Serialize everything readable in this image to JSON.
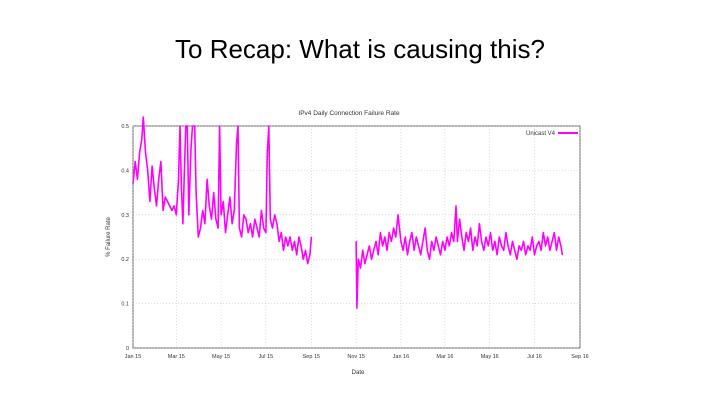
{
  "slide": {
    "title": "To Recap: What is causing this?"
  },
  "chart_data": {
    "type": "line",
    "title": "IPv4 Daily Connection Failure Rate",
    "xlabel": "Date",
    "ylabel": "% Failure Rate",
    "ylim": [
      0,
      0.5
    ],
    "yticks": [
      "0",
      "0.1",
      "0.2",
      "0.3",
      "0.4",
      "0.5"
    ],
    "xlim": [
      "2015-01-01",
      "2016-09-01"
    ],
    "xticks": [
      {
        "date": "2015-01-01",
        "label": "Jan 15"
      },
      {
        "date": "2015-03-01",
        "label": "Mar 15"
      },
      {
        "date": "2015-05-01",
        "label": "May 15"
      },
      {
        "date": "2015-07-01",
        "label": "Jul 15"
      },
      {
        "date": "2015-09-01",
        "label": "Sep 15"
      },
      {
        "date": "2015-11-01",
        "label": "Nov 15"
      },
      {
        "date": "2016-01-01",
        "label": "Jan 16"
      },
      {
        "date": "2016-03-01",
        "label": "Mar 16"
      },
      {
        "date": "2016-05-01",
        "label": "May 16"
      },
      {
        "date": "2016-07-01",
        "label": "Jul 16"
      },
      {
        "date": "2016-09-01",
        "label": "Sep 16"
      }
    ],
    "grid": true,
    "legend_position": "top-right",
    "series": [
      {
        "name": "Unicast V4",
        "color": "#ff00ff",
        "segments": [
          [
            [
              "2015-01-01",
              0.37
            ],
            [
              "2015-01-04",
              0.42
            ],
            [
              "2015-01-07",
              0.38
            ],
            [
              "2015-01-10",
              0.44
            ],
            [
              "2015-01-13",
              0.47
            ],
            [
              "2015-01-15",
              0.52
            ],
            [
              "2015-01-18",
              0.44
            ],
            [
              "2015-01-21",
              0.4
            ],
            [
              "2015-01-24",
              0.33
            ],
            [
              "2015-01-27",
              0.41
            ],
            [
              "2015-01-30",
              0.36
            ],
            [
              "2015-02-02",
              0.32
            ],
            [
              "2015-02-05",
              0.38
            ],
            [
              "2015-02-08",
              0.42
            ],
            [
              "2015-02-11",
              0.31
            ],
            [
              "2015-02-14",
              0.34
            ],
            [
              "2015-02-17",
              0.33
            ],
            [
              "2015-02-20",
              0.32
            ],
            [
              "2015-02-23",
              0.31
            ],
            [
              "2015-02-26",
              0.32
            ],
            [
              "2015-03-01",
              0.3
            ],
            [
              "2015-03-04",
              0.38
            ],
            [
              "2015-03-06",
              0.5
            ],
            [
              "2015-03-08",
              0.36
            ],
            [
              "2015-03-10",
              0.28
            ],
            [
              "2015-03-12",
              0.4
            ],
            [
              "2015-03-14",
              0.5
            ],
            [
              "2015-03-16",
              0.5
            ],
            [
              "2015-03-18",
              0.3
            ],
            [
              "2015-03-21",
              0.45
            ],
            [
              "2015-03-23",
              0.5
            ],
            [
              "2015-03-26",
              0.5
            ],
            [
              "2015-03-28",
              0.35
            ],
            [
              "2015-03-31",
              0.25
            ],
            [
              "2015-04-03",
              0.27
            ],
            [
              "2015-04-06",
              0.31
            ],
            [
              "2015-04-09",
              0.28
            ],
            [
              "2015-04-12",
              0.38
            ],
            [
              "2015-04-15",
              0.32
            ],
            [
              "2015-04-18",
              0.29
            ],
            [
              "2015-04-21",
              0.35
            ],
            [
              "2015-04-24",
              0.29
            ],
            [
              "2015-04-27",
              0.27
            ],
            [
              "2015-04-29",
              0.5
            ],
            [
              "2015-05-01",
              0.3
            ],
            [
              "2015-05-04",
              0.33
            ],
            [
              "2015-05-07",
              0.26
            ],
            [
              "2015-05-10",
              0.3
            ],
            [
              "2015-05-13",
              0.34
            ],
            [
              "2015-05-16",
              0.28
            ],
            [
              "2015-05-19",
              0.31
            ],
            [
              "2015-05-22",
              0.46
            ],
            [
              "2015-05-24",
              0.5
            ],
            [
              "2015-05-26",
              0.27
            ],
            [
              "2015-05-29",
              0.25
            ],
            [
              "2015-06-01",
              0.3
            ],
            [
              "2015-06-04",
              0.29
            ],
            [
              "2015-06-07",
              0.26
            ],
            [
              "2015-06-10",
              0.28
            ],
            [
              "2015-06-13",
              0.25
            ],
            [
              "2015-06-16",
              0.29
            ],
            [
              "2015-06-19",
              0.27
            ],
            [
              "2015-06-22",
              0.25
            ],
            [
              "2015-06-25",
              0.31
            ],
            [
              "2015-06-28",
              0.27
            ],
            [
              "2015-07-01",
              0.26
            ],
            [
              "2015-07-03",
              0.44
            ],
            [
              "2015-07-05",
              0.5
            ],
            [
              "2015-07-07",
              0.29
            ],
            [
              "2015-07-10",
              0.27
            ],
            [
              "2015-07-13",
              0.3
            ],
            [
              "2015-07-16",
              0.28
            ],
            [
              "2015-07-19",
              0.24
            ],
            [
              "2015-07-22",
              0.26
            ],
            [
              "2015-07-25",
              0.22
            ],
            [
              "2015-07-28",
              0.25
            ],
            [
              "2015-07-31",
              0.23
            ],
            [
              "2015-08-03",
              0.25
            ],
            [
              "2015-08-06",
              0.22
            ],
            [
              "2015-08-09",
              0.24
            ],
            [
              "2015-08-12",
              0.21
            ],
            [
              "2015-08-15",
              0.25
            ],
            [
              "2015-08-18",
              0.23
            ],
            [
              "2015-08-21",
              0.2
            ],
            [
              "2015-08-24",
              0.22
            ],
            [
              "2015-08-27",
              0.19
            ],
            [
              "2015-08-30",
              0.21
            ],
            [
              "2015-09-01",
              0.25
            ]
          ],
          [
            [
              "2015-11-01",
              0.24
            ],
            [
              "2015-11-02",
              0.09
            ],
            [
              "2015-11-04",
              0.2
            ],
            [
              "2015-11-07",
              0.18
            ],
            [
              "2015-11-10",
              0.22
            ],
            [
              "2015-11-13",
              0.19
            ],
            [
              "2015-11-16",
              0.21
            ],
            [
              "2015-11-19",
              0.23
            ],
            [
              "2015-11-22",
              0.2
            ],
            [
              "2015-11-25",
              0.22
            ],
            [
              "2015-11-28",
              0.24
            ],
            [
              "2015-12-01",
              0.21
            ],
            [
              "2015-12-04",
              0.26
            ],
            [
              "2015-12-07",
              0.23
            ],
            [
              "2015-12-10",
              0.25
            ],
            [
              "2015-12-13",
              0.22
            ],
            [
              "2015-12-16",
              0.26
            ],
            [
              "2015-12-19",
              0.24
            ],
            [
              "2015-12-22",
              0.27
            ],
            [
              "2015-12-25",
              0.25
            ],
            [
              "2015-12-28",
              0.3
            ],
            [
              "2016-01-01",
              0.24
            ],
            [
              "2016-01-04",
              0.22
            ],
            [
              "2016-01-07",
              0.25
            ],
            [
              "2016-01-10",
              0.21
            ],
            [
              "2016-01-13",
              0.24
            ],
            [
              "2016-01-16",
              0.26
            ],
            [
              "2016-01-19",
              0.22
            ],
            [
              "2016-01-22",
              0.25
            ],
            [
              "2016-01-25",
              0.23
            ],
            [
              "2016-01-28",
              0.21
            ],
            [
              "2016-01-31",
              0.24
            ],
            [
              "2016-02-03",
              0.27
            ],
            [
              "2016-02-06",
              0.22
            ],
            [
              "2016-02-09",
              0.2
            ],
            [
              "2016-02-12",
              0.24
            ],
            [
              "2016-02-15",
              0.22
            ],
            [
              "2016-02-18",
              0.25
            ],
            [
              "2016-02-21",
              0.23
            ],
            [
              "2016-02-24",
              0.21
            ],
            [
              "2016-02-27",
              0.24
            ],
            [
              "2016-03-01",
              0.22
            ],
            [
              "2016-03-04",
              0.25
            ],
            [
              "2016-03-07",
              0.23
            ],
            [
              "2016-03-10",
              0.26
            ],
            [
              "2016-03-13",
              0.24
            ],
            [
              "2016-03-16",
              0.32
            ],
            [
              "2016-03-18",
              0.24
            ],
            [
              "2016-03-21",
              0.29
            ],
            [
              "2016-03-24",
              0.25
            ],
            [
              "2016-03-27",
              0.22
            ],
            [
              "2016-03-30",
              0.26
            ],
            [
              "2016-04-02",
              0.24
            ],
            [
              "2016-04-05",
              0.27
            ],
            [
              "2016-04-08",
              0.22
            ],
            [
              "2016-04-11",
              0.25
            ],
            [
              "2016-04-14",
              0.23
            ],
            [
              "2016-04-17",
              0.28
            ],
            [
              "2016-04-20",
              0.24
            ],
            [
              "2016-04-23",
              0.22
            ],
            [
              "2016-04-26",
              0.25
            ],
            [
              "2016-04-29",
              0.23
            ],
            [
              "2016-05-02",
              0.26
            ],
            [
              "2016-05-05",
              0.22
            ],
            [
              "2016-05-08",
              0.24
            ],
            [
              "2016-05-11",
              0.21
            ],
            [
              "2016-05-14",
              0.25
            ],
            [
              "2016-05-17",
              0.23
            ],
            [
              "2016-05-20",
              0.22
            ],
            [
              "2016-05-23",
              0.26
            ],
            [
              "2016-05-26",
              0.23
            ],
            [
              "2016-05-29",
              0.21
            ],
            [
              "2016-06-01",
              0.24
            ],
            [
              "2016-06-04",
              0.22
            ],
            [
              "2016-06-07",
              0.2
            ],
            [
              "2016-06-10",
              0.23
            ],
            [
              "2016-06-13",
              0.22
            ],
            [
              "2016-06-16",
              0.24
            ],
            [
              "2016-06-19",
              0.21
            ],
            [
              "2016-06-22",
              0.23
            ],
            [
              "2016-06-25",
              0.22
            ],
            [
              "2016-06-28",
              0.25
            ],
            [
              "2016-07-01",
              0.21
            ],
            [
              "2016-07-04",
              0.23
            ],
            [
              "2016-07-07",
              0.24
            ],
            [
              "2016-07-10",
              0.22
            ],
            [
              "2016-07-13",
              0.26
            ],
            [
              "2016-07-16",
              0.23
            ],
            [
              "2016-07-19",
              0.25
            ],
            [
              "2016-07-22",
              0.22
            ],
            [
              "2016-07-25",
              0.24
            ],
            [
              "2016-07-28",
              0.26
            ],
            [
              "2016-07-31",
              0.22
            ],
            [
              "2016-08-03",
              0.25
            ],
            [
              "2016-08-06",
              0.23
            ],
            [
              "2016-08-08",
              0.21
            ]
          ]
        ]
      }
    ]
  }
}
